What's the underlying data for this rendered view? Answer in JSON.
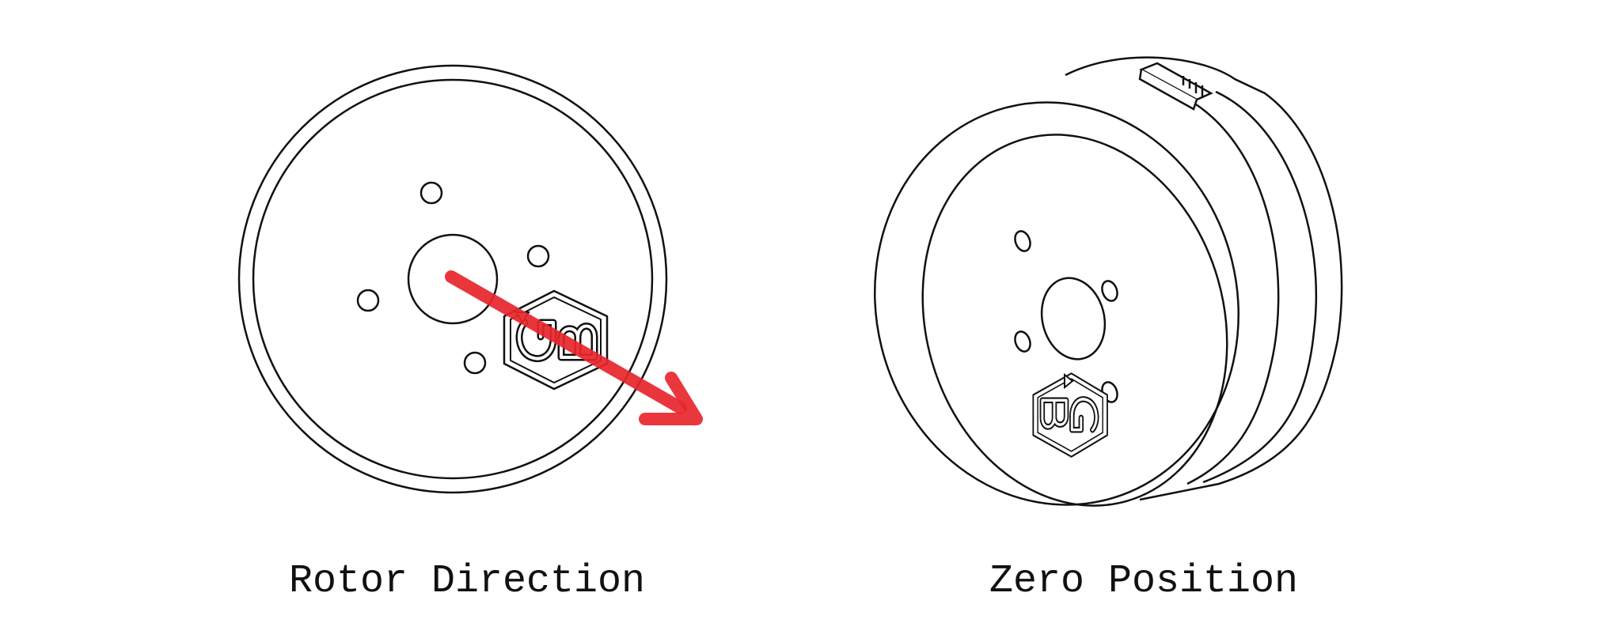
{
  "figure": {
    "panels": [
      {
        "caption": "Rotor Direction"
      },
      {
        "caption": "Zero Position"
      }
    ],
    "logo_text": "GB",
    "colors": {
      "line": "#111111",
      "arrow": "#e8262c",
      "background": "#ffffff"
    },
    "icons": [
      "motor-front-view",
      "motor-isometric-view",
      "direction-arrow",
      "logo-badge"
    ]
  }
}
